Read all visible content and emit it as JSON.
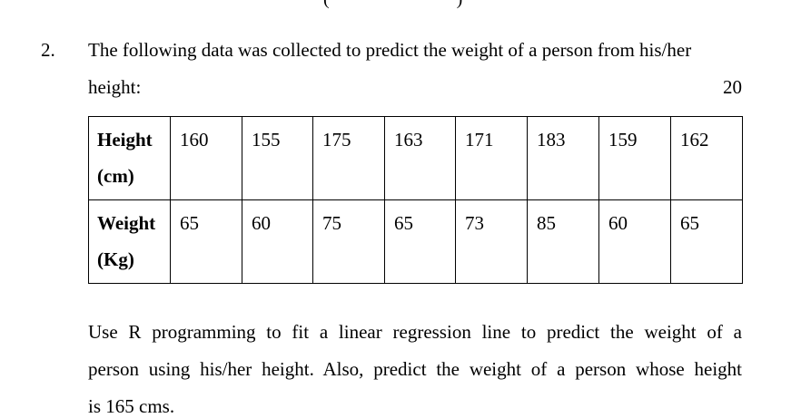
{
  "question": {
    "number": "2.",
    "intro_line_1": "The following data was collected to predict the weight of a person from his/her",
    "intro_line_2": "height:",
    "marks": "20"
  },
  "table": {
    "rows": [
      {
        "header_line_1": "Height",
        "header_line_2": "(cm)",
        "values": [
          "160",
          "155",
          "175",
          "163",
          "171",
          "183",
          "159",
          "162"
        ]
      },
      {
        "header_line_1": "Weight",
        "header_line_2": "(Kg)",
        "values": [
          "65",
          "60",
          "75",
          "65",
          "73",
          "85",
          "60",
          "65"
        ]
      }
    ]
  },
  "instructions": {
    "line_1": "Use R programming to fit a linear regression line to predict the weight of a",
    "line_2": "person using his/her height. Also, predict the weight of a person whose height",
    "line_3": "is 165 cms."
  }
}
